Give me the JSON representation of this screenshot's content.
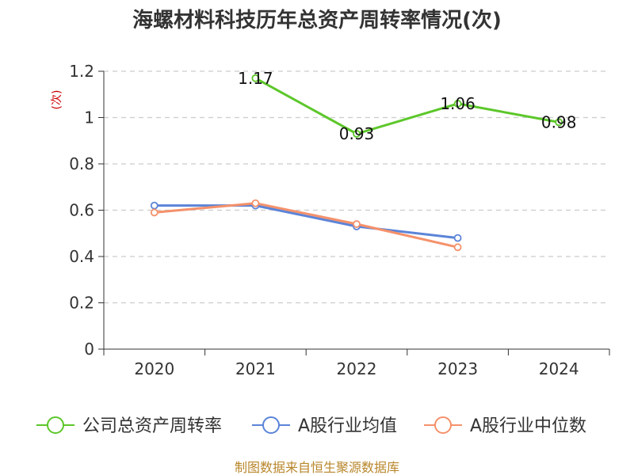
{
  "chart_data": {
    "type": "line",
    "title": "海螺材料科技历年总资产周转率情况(次)",
    "ylabel": "(次)",
    "xlabel": "",
    "categories": [
      "2020",
      "2021",
      "2022",
      "2023",
      "2024"
    ],
    "yticks": [
      "0",
      "0.2",
      "0.4",
      "0.6",
      "0.8",
      "1",
      "1.2"
    ],
    "ylim": [
      0,
      1.2
    ],
    "grid": true,
    "legend_position": "bottom",
    "series": [
      {
        "name": "公司总资产周转率",
        "color": "#5cc72a",
        "values": [
          null,
          1.17,
          0.93,
          1.06,
          0.98
        ],
        "labels": [
          "",
          "1.17",
          "0.93",
          "1.06",
          "0.98"
        ]
      },
      {
        "name": "A股行业均值",
        "color": "#5b84d8",
        "values": [
          0.62,
          0.62,
          0.53,
          0.48,
          null
        ]
      },
      {
        "name": "A股行业中位数",
        "color": "#f5916b",
        "values": [
          0.59,
          0.63,
          0.54,
          0.44,
          null
        ]
      }
    ],
    "source": "制图数据来自恒生聚源数据库"
  }
}
